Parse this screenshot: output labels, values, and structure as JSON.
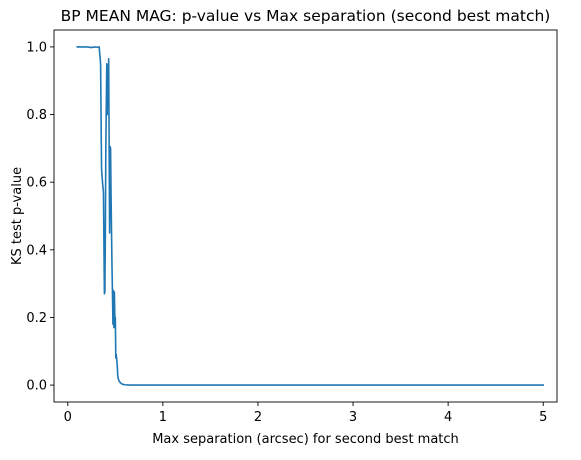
{
  "chart_data": {
    "type": "line",
    "title": "BP MEAN MAG: p-value vs Max separation (second best match)",
    "xlabel": "Max separation (arcsec) for second best match",
    "ylabel": "KS test p-value",
    "xlim": [
      -0.145,
      5.145
    ],
    "ylim": [
      -0.05,
      1.05
    ],
    "xticks": [
      0,
      1,
      2,
      3,
      4,
      5
    ],
    "xtick_labels": [
      "0",
      "1",
      "2",
      "3",
      "4",
      "5"
    ],
    "yticks": [
      0.0,
      0.2,
      0.4,
      0.6,
      0.8,
      1.0
    ],
    "ytick_labels": [
      "0.0",
      "0.2",
      "0.4",
      "0.6",
      "0.8",
      "1.0"
    ],
    "grid": false,
    "series": [
      {
        "color": "#1f77b4",
        "x": [
          0.1,
          0.2,
          0.25,
          0.28,
          0.3,
          0.33,
          0.345,
          0.355,
          0.365,
          0.375,
          0.385,
          0.39,
          0.395,
          0.4,
          0.41,
          0.415,
          0.42,
          0.425,
          0.43,
          0.435,
          0.44,
          0.445,
          0.45,
          0.455,
          0.46,
          0.465,
          0.47,
          0.475,
          0.48,
          0.485,
          0.49,
          0.495,
          0.5,
          0.505,
          0.51,
          0.515,
          0.52,
          0.525,
          0.53,
          0.54,
          0.55,
          0.57,
          0.6,
          0.65,
          0.7,
          1.0,
          2.0,
          3.0,
          4.0,
          5.0
        ],
        "y": [
          1.0,
          1.0,
          0.998,
          1.0,
          0.999,
          1.0,
          0.95,
          0.64,
          0.6,
          0.57,
          0.27,
          0.275,
          0.45,
          0.7,
          0.95,
          0.8,
          0.945,
          0.83,
          0.965,
          0.7,
          0.45,
          0.705,
          0.7,
          0.56,
          0.45,
          0.35,
          0.27,
          0.18,
          0.28,
          0.17,
          0.275,
          0.2,
          0.2,
          0.08,
          0.09,
          0.075,
          0.06,
          0.03,
          0.02,
          0.012,
          0.008,
          0.003,
          0.001,
          0.0,
          0.0,
          0.0,
          0.0,
          0.0,
          0.0,
          0.0
        ]
      }
    ]
  }
}
